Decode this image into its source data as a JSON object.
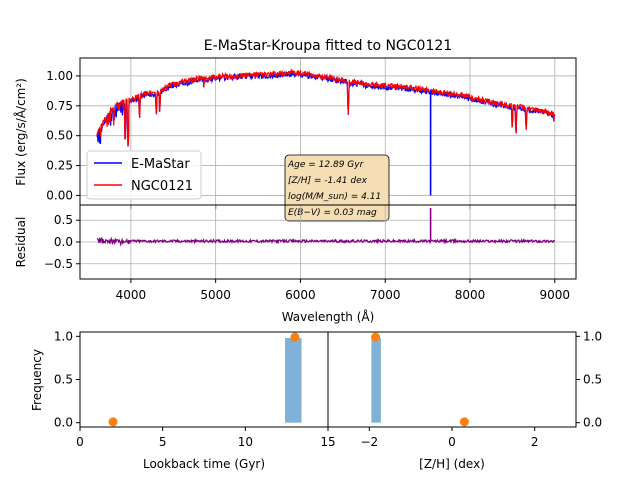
{
  "chart_data": [
    {
      "type": "line",
      "panel": "spectrum",
      "title": "E-MaStar-Kroupa fitted to NGC0121",
      "xlabel": "",
      "ylabel": "Flux (erg/s/Å/cm²)",
      "ylim": [
        -0.08,
        1.15
      ],
      "xlim": [
        3400,
        9250
      ],
      "yticks": [
        0.0,
        0.25,
        0.5,
        0.75,
        1.0
      ],
      "ytick_labels": [
        "0.00",
        "0.25",
        "0.50",
        "0.75",
        "1.00"
      ],
      "grid": true,
      "legend": "left",
      "series": [
        {
          "name": "E-MaStar",
          "color": "#0000ff"
        },
        {
          "name": "NGC0121",
          "color": "#ff0000"
        }
      ],
      "continuum": {
        "x": [
          3600,
          3650,
          3700,
          3750,
          3800,
          3850,
          3900,
          3950,
          4000,
          4100,
          4200,
          4300,
          4400,
          4500,
          4600,
          4700,
          4800,
          4900,
          5000,
          5200,
          5400,
          5600,
          5800,
          5900,
          6000,
          6200,
          6400,
          6600,
          6800,
          7000,
          7200,
          7400,
          7600,
          7800,
          8000,
          8200,
          8400,
          8600,
          8800,
          9000
        ],
        "y": [
          0.52,
          0.58,
          0.64,
          0.7,
          0.74,
          0.77,
          0.78,
          0.79,
          0.8,
          0.83,
          0.86,
          0.86,
          0.9,
          0.93,
          0.95,
          0.96,
          0.98,
          0.98,
          0.99,
          1.0,
          1.01,
          1.01,
          1.02,
          1.03,
          1.02,
          1.0,
          0.98,
          0.95,
          0.93,
          0.92,
          0.91,
          0.89,
          0.87,
          0.85,
          0.82,
          0.79,
          0.76,
          0.74,
          0.72,
          0.68
        ]
      },
      "absorption_lines": [
        {
          "x": 3933,
          "y": 0.4
        },
        {
          "x": 3968,
          "y": 0.36
        },
        {
          "x": 4102,
          "y": 0.6
        },
        {
          "x": 4300,
          "y": 0.63
        },
        {
          "x": 4340,
          "y": 0.65
        },
        {
          "x": 4861,
          "y": 0.88
        },
        {
          "x": 5175,
          "y": 0.9
        },
        {
          "x": 6563,
          "y": 0.65
        },
        {
          "x": 8498,
          "y": 0.52
        },
        {
          "x": 8542,
          "y": 0.47
        },
        {
          "x": 8662,
          "y": 0.5
        },
        {
          "x": 8990,
          "y": 0.57
        }
      ],
      "e_mastar_only_line": {
        "x": 7535,
        "y": 0.0
      },
      "annotation": [
        "Age = 12.89 Gyr",
        "[Z/H] = -1.41 dex",
        "log(M/M_sun) = 4.11",
        "E(B−V) = 0.03 mag"
      ]
    },
    {
      "type": "line",
      "panel": "residual",
      "xlabel": "Wavelength (Å)",
      "ylabel": "Residual",
      "ylim": [
        -0.85,
        0.85
      ],
      "xlim": [
        3400,
        9250
      ],
      "xticks": [
        4000,
        5000,
        6000,
        7000,
        8000,
        9000
      ],
      "yticks": [
        -0.5,
        0.0,
        0.5
      ],
      "ytick_labels": [
        "−0.5",
        "0.0",
        "0.5"
      ],
      "grid": true,
      "series": [
        {
          "name": "Residual",
          "color": "#800080",
          "level": 0.02,
          "spike_x": 7535,
          "spike_y": 0.78
        }
      ]
    },
    {
      "type": "bar",
      "panel": "age-histogram",
      "xlabel": "Lookback time (Gyr)",
      "ylabel": "Frequency",
      "xlim": [
        0,
        15
      ],
      "ylim": [
        -0.05,
        1.05
      ],
      "xticks": [
        0,
        5,
        10,
        15
      ],
      "yticks": [
        0.0,
        0.5,
        1.0
      ],
      "ytick_labels": [
        "0.0",
        "0.5",
        "1.0"
      ],
      "bars": [
        {
          "x0": 12.4,
          "x1": 13.4,
          "value": 0.98
        }
      ],
      "points": [
        {
          "x": 2.0,
          "y": 0.01
        },
        {
          "x": 13.0,
          "y": 0.99
        }
      ],
      "bar_color": "#7fb2d6",
      "point_color": "#ff7f0e"
    },
    {
      "type": "bar",
      "panel": "metallicity-histogram",
      "xlabel": "[Z/H] (dex)",
      "ylabel": "",
      "xlim": [
        -3.0,
        3.0
      ],
      "ylim": [
        -0.05,
        1.05
      ],
      "xticks": [
        -2,
        0,
        2
      ],
      "xtick_labels": [
        "−2",
        "0",
        "2"
      ],
      "yticks": [
        0.0,
        0.5,
        1.0
      ],
      "ytick_labels": [
        "0.0",
        "0.5",
        "1.0"
      ],
      "bars": [
        {
          "x0": -1.95,
          "x1": -1.72,
          "value": 0.98
        }
      ],
      "points": [
        {
          "x": 0.3,
          "y": 0.01
        },
        {
          "x": -1.85,
          "y": 0.99
        }
      ],
      "bar_color": "#7fb2d6",
      "point_color": "#ff7f0e"
    }
  ]
}
